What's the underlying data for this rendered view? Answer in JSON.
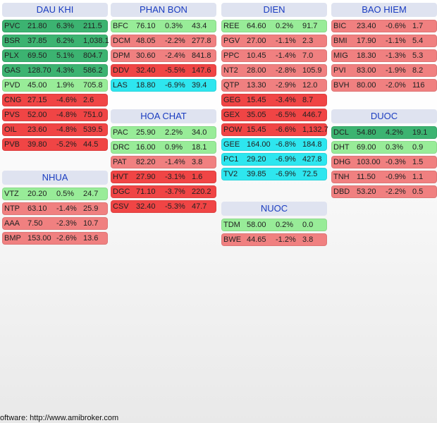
{
  "colors": {
    "header_bg": "#dfe3f0",
    "header_text": "#1a3cc0",
    "up_strong": "#3cb371",
    "up_weak": "#98ec98",
    "down": "#f08080",
    "down_strong": "#f04545",
    "floor": "#2ee6ef"
  },
  "sectors": [
    {
      "name": "DAU KHI",
      "stocks": [
        {
          "sym": "PVC",
          "price": "21.80",
          "chg": "6.3%",
          "vol": "211.5",
          "style": "up_strong"
        },
        {
          "sym": "BSR",
          "price": "37.85",
          "chg": "6.2%",
          "vol": "1,038.1",
          "style": "up_strong"
        },
        {
          "sym": "PLX",
          "price": "69.50",
          "chg": "5.1%",
          "vol": "804.7",
          "style": "up_strong"
        },
        {
          "sym": "GAS",
          "price": "128.70",
          "chg": "4.3%",
          "vol": "586.2",
          "style": "up_strong"
        },
        {
          "sym": "PVD",
          "price": "45.00",
          "chg": "1.9%",
          "vol": "705.8",
          "style": "up_weak"
        },
        {
          "sym": "CNG",
          "price": "27.15",
          "chg": "-4.6%",
          "vol": "2.6",
          "style": "down_strong"
        },
        {
          "sym": "PVS",
          "price": "52.00",
          "chg": "-4.8%",
          "vol": "751.0",
          "style": "down_strong"
        },
        {
          "sym": "OIL",
          "price": "23.60",
          "chg": "-4.8%",
          "vol": "539.5",
          "style": "down_strong"
        },
        {
          "sym": "PVB",
          "price": "39.80",
          "chg": "-5.2%",
          "vol": "44.5",
          "style": "down_strong"
        }
      ]
    },
    {
      "name": "NHUA",
      "stocks": [
        {
          "sym": "VTZ",
          "price": "20.20",
          "chg": "0.5%",
          "vol": "24.7",
          "style": "up_weak"
        },
        {
          "sym": "NTP",
          "price": "63.10",
          "chg": "-1.4%",
          "vol": "25.9",
          "style": "down"
        },
        {
          "sym": "AAA",
          "price": "7.50",
          "chg": "-2.3%",
          "vol": "10.7",
          "style": "down"
        },
        {
          "sym": "BMP",
          "price": "153.00",
          "chg": "-2.6%",
          "vol": "13.6",
          "style": "down"
        }
      ]
    },
    {
      "name": "PHAN BON",
      "stocks": [
        {
          "sym": "BFC",
          "price": "76.10",
          "chg": "0.3%",
          "vol": "43.4",
          "style": "up_weak"
        },
        {
          "sym": "DCM",
          "price": "48.05",
          "chg": "-2.2%",
          "vol": "277.8",
          "style": "down"
        },
        {
          "sym": "DPM",
          "price": "30.60",
          "chg": "-2.4%",
          "vol": "841.8",
          "style": "down"
        },
        {
          "sym": "DDV",
          "price": "32.40",
          "chg": "-5.5%",
          "vol": "147.6",
          "style": "down_strong"
        },
        {
          "sym": "LAS",
          "price": "18.80",
          "chg": "-6.9%",
          "vol": "39.4",
          "style": "floor"
        }
      ]
    },
    {
      "name": "HOA CHAT",
      "stocks": [
        {
          "sym": "PAC",
          "price": "25.90",
          "chg": "2.2%",
          "vol": "34.0",
          "style": "up_weak"
        },
        {
          "sym": "DRC",
          "price": "16.00",
          "chg": "0.9%",
          "vol": "18.1",
          "style": "up_weak"
        },
        {
          "sym": "PAT",
          "price": "82.20",
          "chg": "-1.4%",
          "vol": "3.8",
          "style": "down"
        },
        {
          "sym": "HVT",
          "price": "27.90",
          "chg": "-3.1%",
          "vol": "1.6",
          "style": "down_strong"
        },
        {
          "sym": "DGC",
          "price": "71.10",
          "chg": "-3.7%",
          "vol": "220.2",
          "style": "down_strong"
        },
        {
          "sym": "CSV",
          "price": "32.40",
          "chg": "-5.3%",
          "vol": "47.7",
          "style": "down_strong"
        }
      ]
    },
    {
      "name": "DIEN",
      "stocks": [
        {
          "sym": "REE",
          "price": "64.60",
          "chg": "0.2%",
          "vol": "91.7",
          "style": "up_weak"
        },
        {
          "sym": "PGV",
          "price": "27.00",
          "chg": "-1.1%",
          "vol": "2.3",
          "style": "down"
        },
        {
          "sym": "PPC",
          "price": "10.45",
          "chg": "-1.4%",
          "vol": "7.0",
          "style": "down"
        },
        {
          "sym": "NT2",
          "price": "28.00",
          "chg": "-2.8%",
          "vol": "105.9",
          "style": "down"
        },
        {
          "sym": "QTP",
          "price": "13.30",
          "chg": "-2.9%",
          "vol": "12.0",
          "style": "down"
        },
        {
          "sym": "GEG",
          "price": "15.45",
          "chg": "-3.4%",
          "vol": "8.7",
          "style": "down_strong"
        },
        {
          "sym": "GEX",
          "price": "35.05",
          "chg": "-6.5%",
          "vol": "446.7",
          "style": "down_strong"
        },
        {
          "sym": "POW",
          "price": "15.45",
          "chg": "-6.6%",
          "vol": "1,132.7",
          "style": "down_strong"
        },
        {
          "sym": "GEE",
          "price": "164.00",
          "chg": "-6.8%",
          "vol": "184.8",
          "style": "floor"
        },
        {
          "sym": "PC1",
          "price": "29.20",
          "chg": "-6.9%",
          "vol": "427.8",
          "style": "floor"
        },
        {
          "sym": "TV2",
          "price": "39.85",
          "chg": "-6.9%",
          "vol": "72.5",
          "style": "floor"
        }
      ]
    },
    {
      "name": "NUOC",
      "stocks": [
        {
          "sym": "TDM",
          "price": "58.00",
          "chg": "0.2%",
          "vol": "0.0",
          "style": "up_weak"
        },
        {
          "sym": "BWE",
          "price": "44.65",
          "chg": "-1.2%",
          "vol": "3.8",
          "style": "down"
        }
      ]
    },
    {
      "name": "BAO HIEM",
      "stocks": [
        {
          "sym": "BIC",
          "price": "23.40",
          "chg": "-0.6%",
          "vol": "1.7",
          "style": "down"
        },
        {
          "sym": "BMI",
          "price": "17.90",
          "chg": "-1.1%",
          "vol": "5.4",
          "style": "down"
        },
        {
          "sym": "MIG",
          "price": "18.30",
          "chg": "-1.3%",
          "vol": "5.3",
          "style": "down"
        },
        {
          "sym": "PVI",
          "price": "83.00",
          "chg": "-1.9%",
          "vol": "8.2",
          "style": "down"
        },
        {
          "sym": "BVH",
          "price": "80.00",
          "chg": "-2.0%",
          "vol": "116",
          "style": "down"
        }
      ]
    },
    {
      "name": "DUOC",
      "stocks": [
        {
          "sym": "DCL",
          "price": "54.80",
          "chg": "4.2%",
          "vol": "19.1",
          "style": "up_strong"
        },
        {
          "sym": "DHT",
          "price": "69.00",
          "chg": "0.3%",
          "vol": "0.9",
          "style": "up_weak"
        },
        {
          "sym": "DHG",
          "price": "103.00",
          "chg": "-0.3%",
          "vol": "1.5",
          "style": "down"
        },
        {
          "sym": "TNH",
          "price": "11.50",
          "chg": "-0.9%",
          "vol": "1.1",
          "style": "down"
        },
        {
          "sym": "DBD",
          "price": "53.20",
          "chg": "-2.2%",
          "vol": "0.5",
          "style": "down"
        }
      ]
    }
  ],
  "footer": "oftware: http://www.amibroker.com"
}
